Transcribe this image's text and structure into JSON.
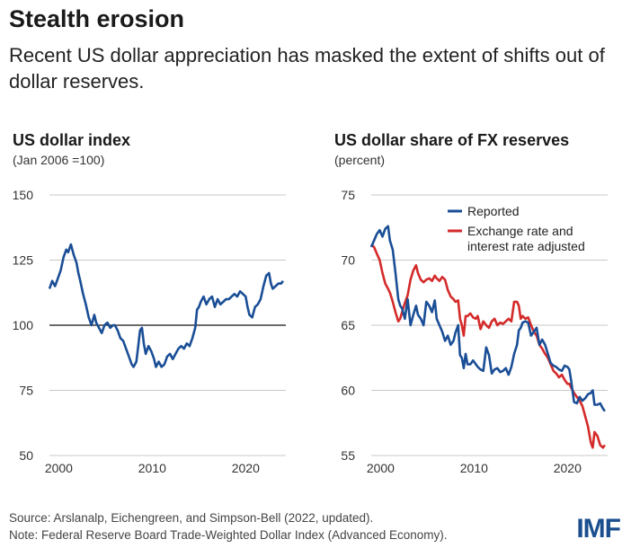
{
  "header": {
    "title": "Stealth erosion",
    "subtitle": "Recent US dollar appreciation has masked the extent of shifts out of dollar reserves."
  },
  "colors": {
    "blue": "#1a4e96",
    "red": "#d42a2a",
    "grid": "#c8c8c8"
  },
  "footer": {
    "source": "Source: Arslanalp, Eichengreen, and Simpson-Bell (2022, updated).",
    "note": "Note: Federal Reserve Board Trade-Weighted Dollar Index (Advanced Economy).",
    "logo": "IMF"
  },
  "chart_data": [
    {
      "type": "line",
      "title": "US dollar index",
      "subtitle": "(Jan 2006 =100)",
      "xlim": [
        1999,
        2024.3
      ],
      "ylim": [
        50,
        150
      ],
      "yticks": [
        50,
        75,
        100,
        125,
        150
      ],
      "xticks": [
        2000,
        2010,
        2020
      ],
      "grid": true,
      "reference_line": 100,
      "series": [
        {
          "color": "#1a4e96",
          "x": [
            1999.0,
            1999.3,
            1999.6,
            1999.9,
            2000.2,
            2000.5,
            2000.8,
            2001.0,
            2001.3,
            2001.6,
            2001.9,
            2002.1,
            2002.3,
            2002.6,
            2002.9,
            2003.2,
            2003.5,
            2003.8,
            2004.0,
            2004.3,
            2004.6,
            2004.9,
            2005.2,
            2005.5,
            2005.8,
            2006.0,
            2006.3,
            2006.6,
            2006.9,
            2007.2,
            2007.5,
            2007.8,
            2008.0,
            2008.3,
            2008.5,
            2008.7,
            2008.9,
            2009.1,
            2009.3,
            2009.6,
            2009.9,
            2010.2,
            2010.4,
            2010.7,
            2011.0,
            2011.3,
            2011.6,
            2011.9,
            2012.2,
            2012.5,
            2012.8,
            2013.1,
            2013.4,
            2013.7,
            2014.0,
            2014.3,
            2014.6,
            2014.8,
            2015.0,
            2015.2,
            2015.5,
            2015.8,
            2016.1,
            2016.4,
            2016.7,
            2017.0,
            2017.3,
            2017.6,
            2017.9,
            2018.2,
            2018.5,
            2018.8,
            2019.1,
            2019.4,
            2019.7,
            2020.0,
            2020.2,
            2020.4,
            2020.7,
            2021.0,
            2021.3,
            2021.6,
            2021.9,
            2022.2,
            2022.5,
            2022.7,
            2022.9,
            2023.2,
            2023.5,
            2023.8,
            2024.0
          ],
          "y": [
            114,
            117,
            115,
            118,
            121,
            126,
            129,
            128,
            131,
            127,
            124,
            120,
            117,
            112,
            108,
            103,
            100,
            104,
            101,
            99,
            97,
            100,
            101,
            99,
            100,
            100,
            98,
            95,
            94,
            91,
            88,
            85,
            84,
            86,
            92,
            98,
            99,
            93,
            89,
            92,
            90,
            87,
            84,
            86,
            84,
            85,
            88,
            89,
            87,
            89,
            91,
            92,
            91,
            93,
            92,
            95,
            99,
            106,
            107,
            109,
            111,
            108,
            110,
            111,
            107,
            110,
            108,
            109,
            110,
            110,
            111,
            112,
            111,
            113,
            112,
            111,
            107,
            104,
            103,
            107,
            108,
            110,
            115,
            119,
            120,
            116,
            114,
            115,
            116,
            116,
            117
          ]
        }
      ]
    },
    {
      "type": "line",
      "title": "US dollar share of FX reserves",
      "subtitle": "(percent)",
      "xlim": [
        1999,
        2024.3
      ],
      "ylim": [
        55,
        75
      ],
      "yticks": [
        55,
        60,
        65,
        70,
        75
      ],
      "xticks": [
        2000,
        2010,
        2020
      ],
      "grid": true,
      "legend": "top-right",
      "series": [
        {
          "name": "Reported",
          "color": "#1a4e96",
          "x": [
            1999.0,
            1999.3,
            1999.6,
            1999.9,
            2000.2,
            2000.5,
            2000.8,
            2001.0,
            2001.3,
            2001.6,
            2001.9,
            2002.1,
            2002.3,
            2002.6,
            2002.9,
            2003.2,
            2003.5,
            2003.8,
            2004.0,
            2004.3,
            2004.6,
            2004.9,
            2005.2,
            2005.5,
            2005.8,
            2006.0,
            2006.3,
            2006.6,
            2006.9,
            2007.2,
            2007.5,
            2007.8,
            2008.0,
            2008.3,
            2008.5,
            2008.7,
            2008.9,
            2009.1,
            2009.3,
            2009.6,
            2009.9,
            2010.2,
            2010.4,
            2010.7,
            2011.0,
            2011.3,
            2011.6,
            2011.9,
            2012.2,
            2012.5,
            2012.8,
            2013.1,
            2013.4,
            2013.7,
            2014.0,
            2014.3,
            2014.6,
            2014.8,
            2015.0,
            2015.2,
            2015.5,
            2015.8,
            2016.1,
            2016.4,
            2016.7,
            2017.0,
            2017.3,
            2017.6,
            2017.9,
            2018.2,
            2018.5,
            2018.8,
            2019.1,
            2019.4,
            2019.7,
            2020.0,
            2020.2,
            2020.4,
            2020.7,
            2021.0,
            2021.3,
            2021.6,
            2021.9,
            2022.2,
            2022.5,
            2022.7,
            2022.9,
            2023.2,
            2023.5,
            2023.8,
            2024.0
          ],
          "y": [
            71.0,
            71.5,
            72.0,
            72.3,
            71.8,
            72.4,
            72.6,
            71.5,
            70.8,
            69.0,
            67.0,
            66.5,
            66.3,
            65.5,
            67.0,
            65.0,
            65.8,
            66.5,
            65.8,
            65.5,
            65.0,
            66.8,
            66.5,
            66.0,
            66.9,
            65.5,
            65.0,
            64.5,
            63.8,
            64.2,
            63.5,
            63.8,
            64.4,
            65.0,
            62.7,
            62.5,
            61.7,
            62.8,
            62.0,
            62.0,
            62.3,
            62.0,
            61.8,
            61.6,
            61.5,
            63.3,
            62.7,
            61.3,
            61.6,
            61.7,
            61.4,
            61.5,
            61.7,
            61.2,
            61.8,
            62.8,
            63.5,
            64.6,
            64.8,
            65.2,
            65.3,
            65.2,
            64.2,
            64.5,
            64.8,
            63.5,
            63.9,
            63.5,
            62.8,
            62.1,
            61.9,
            61.8,
            61.6,
            61.5,
            61.9,
            61.8,
            61.6,
            60.7,
            59.1,
            59.0,
            59.5,
            59.2,
            59.4,
            59.7,
            59.8,
            60.0,
            58.9,
            58.9,
            59.0,
            58.6,
            58.4
          ]
        },
        {
          "name": "Exchange rate and interest rate adjusted",
          "color": "#d42a2a",
          "x": [
            1999.0,
            1999.3,
            1999.6,
            1999.9,
            2000.2,
            2000.5,
            2000.8,
            2001.0,
            2001.3,
            2001.6,
            2001.9,
            2002.1,
            2002.3,
            2002.6,
            2002.9,
            2003.2,
            2003.5,
            2003.8,
            2004.0,
            2004.3,
            2004.6,
            2004.9,
            2005.2,
            2005.5,
            2005.8,
            2006.0,
            2006.3,
            2006.6,
            2006.9,
            2007.2,
            2007.5,
            2007.8,
            2008.0,
            2008.3,
            2008.5,
            2008.7,
            2008.9,
            2009.1,
            2009.3,
            2009.6,
            2009.9,
            2010.2,
            2010.4,
            2010.7,
            2011.0,
            2011.3,
            2011.6,
            2011.9,
            2012.2,
            2012.5,
            2012.8,
            2013.1,
            2013.4,
            2013.7,
            2014.0,
            2014.3,
            2014.6,
            2014.8,
            2015.0,
            2015.2,
            2015.5,
            2015.8,
            2016.1,
            2016.4,
            2016.7,
            2017.0,
            2017.3,
            2017.6,
            2017.9,
            2018.2,
            2018.5,
            2018.8,
            2019.1,
            2019.4,
            2019.7,
            2020.0,
            2020.2,
            2020.4,
            2020.7,
            2021.0,
            2021.3,
            2021.6,
            2021.9,
            2022.2,
            2022.5,
            2022.7,
            2022.9,
            2023.2,
            2023.5,
            2023.8,
            2024.0
          ],
          "y": [
            71.2,
            71.0,
            70.5,
            70.0,
            69.0,
            68.2,
            67.8,
            67.5,
            66.8,
            66.0,
            65.3,
            65.5,
            66.0,
            66.7,
            67.3,
            68.5,
            69.2,
            69.6,
            69.0,
            68.5,
            68.3,
            68.5,
            68.6,
            68.4,
            68.8,
            68.6,
            68.4,
            68.7,
            68.5,
            67.7,
            67.2,
            67.0,
            66.8,
            66.9,
            65.5,
            65.0,
            64.2,
            65.7,
            65.7,
            65.9,
            65.6,
            65.5,
            65.7,
            64.7,
            65.3,
            65.0,
            64.8,
            65.3,
            65.5,
            65.0,
            65.2,
            65.1,
            65.3,
            65.5,
            65.3,
            66.8,
            66.8,
            66.5,
            65.5,
            65.7,
            65.5,
            65.6,
            65.0,
            64.5,
            64.2,
            63.5,
            63.2,
            62.8,
            62.5,
            62.0,
            61.5,
            61.3,
            61.0,
            61.2,
            60.8,
            60.5,
            60.5,
            60.2,
            59.8,
            59.5,
            59.2,
            58.8,
            58.0,
            57.2,
            56.0,
            55.6,
            56.8,
            56.5,
            55.8,
            55.6,
            55.8
          ]
        }
      ]
    }
  ]
}
